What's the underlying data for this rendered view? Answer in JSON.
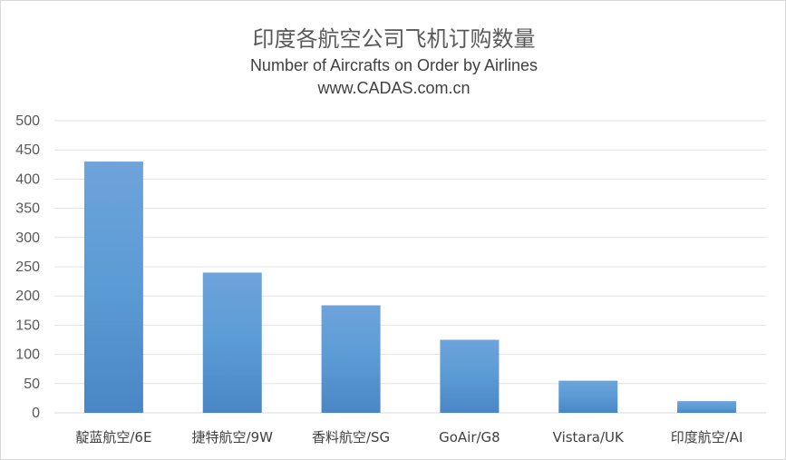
{
  "chart_data": {
    "type": "bar",
    "title": "印度各航空公司飞机订购数量",
    "subtitle": "Number  of Aircrafts on Order by Airlines",
    "source": "www.CADAS.com.cn",
    "categories": [
      "靛蓝航空/6E",
      "捷特航空/9W",
      "香料航空/SG",
      "GoAir/G8",
      "Vistara/UK",
      "印度航空/AI"
    ],
    "values": [
      430,
      240,
      184,
      125,
      55,
      20
    ],
    "ylim": [
      0,
      500
    ],
    "yticks": [
      0,
      50,
      100,
      150,
      200,
      250,
      300,
      350,
      400,
      450,
      500
    ],
    "grid": true,
    "legend": "none",
    "colors": {
      "bar_top": "#6ea3db",
      "bar_mid": "#5b9bd5",
      "bar_bottom": "#4a86c5",
      "grid": "#e3e3e3",
      "axis": "#d9d9d9"
    }
  }
}
